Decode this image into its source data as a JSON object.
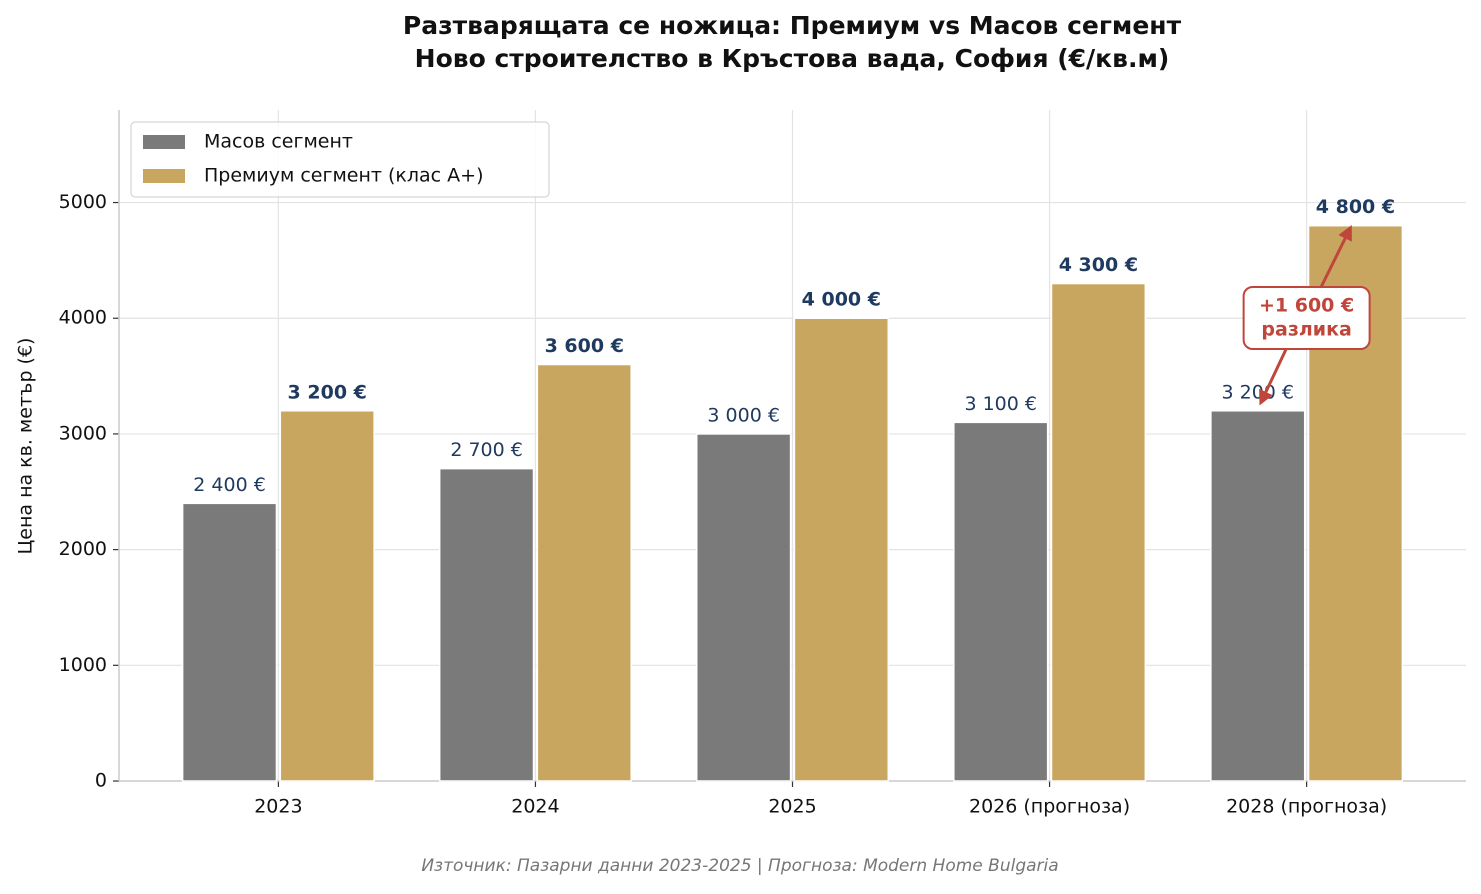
{
  "chart_data": {
    "type": "bar",
    "title": "Разтварящата се ножица: Премиум vs Масов сегмент",
    "subtitle": "Ново строителство в Кръстова вада, София (€/кв.м)",
    "y_label": "Цена на кв. метър (€)",
    "categories": [
      "2023",
      "2024",
      "2025",
      "2026 (прогноза)",
      "2028 (прогноза)"
    ],
    "series": [
      {
        "name": "Масов сегмент",
        "color": "#7a7a7a",
        "values": [
          2400,
          2700,
          3000,
          3100,
          3200
        ],
        "value_labels": [
          "2 400 €",
          "2 700 €",
          "3 000 €",
          "3 100 €",
          "3 200 €"
        ]
      },
      {
        "name": "Премиум сегмент (клас А+)",
        "color": "#c9a65f",
        "values": [
          3200,
          3600,
          4000,
          4300,
          4800
        ],
        "value_labels": [
          "3 200 €",
          "3 600 €",
          "4 000 €",
          "4 300 €",
          "4 800 €"
        ]
      }
    ],
    "ylim": [
      0,
      5800
    ],
    "yticks": [
      0,
      1000,
      2000,
      3000,
      4000,
      5000
    ],
    "grid": true,
    "legend": "upper left",
    "annotation": {
      "lines": [
        "+1 600 €",
        "разлика"
      ],
      "color": "#c0463b"
    },
    "source": "Източник: Пазарни данни 2023-2025 | Прогноза: Modern Home Bulgaria"
  }
}
